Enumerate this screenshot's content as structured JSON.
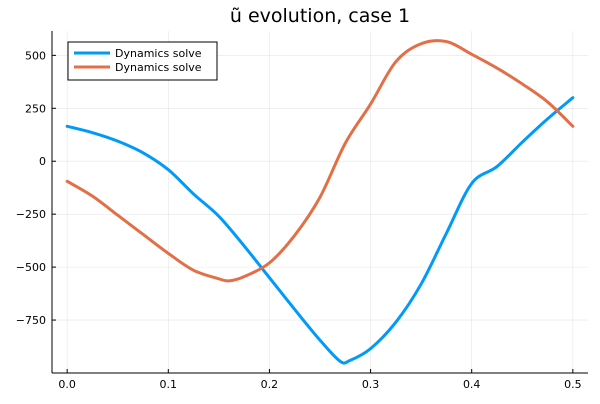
{
  "chart_data": {
    "type": "line",
    "title": "ũ evolution, case 1",
    "xlabel": "",
    "ylabel": "",
    "xlim": [
      -0.015,
      0.515
    ],
    "ylim": [
      -1000,
      615
    ],
    "x_ticks": [
      0.0,
      0.1,
      0.2,
      0.3,
      0.4,
      0.5
    ],
    "x_tick_labels": [
      "0.0",
      "0.1",
      "0.2",
      "0.3",
      "0.4",
      "0.5"
    ],
    "y_ticks": [
      500,
      250,
      0,
      -250,
      -500,
      -750
    ],
    "y_tick_labels": [
      "500",
      "250",
      "0",
      "−250",
      "−500",
      "−750"
    ],
    "grid": true,
    "legend_position": "top-left",
    "series": [
      {
        "name": "Dynamics solve",
        "color": "#009AF9",
        "x": [
          0.0,
          0.025,
          0.05,
          0.075,
          0.1,
          0.125,
          0.15,
          0.175,
          0.2,
          0.225,
          0.25,
          0.27,
          0.28,
          0.3,
          0.325,
          0.35,
          0.375,
          0.4,
          0.425,
          0.45,
          0.475,
          0.5
        ],
        "y": [
          165,
          135,
          95,
          40,
          -40,
          -155,
          -260,
          -400,
          -550,
          -700,
          -845,
          -945,
          -940,
          -885,
          -760,
          -580,
          -340,
          -105,
          -25,
          90,
          200,
          300
        ]
      },
      {
        "name": "Dynamics solve",
        "color": "#E26F46",
        "x": [
          0.0,
          0.025,
          0.05,
          0.075,
          0.1,
          0.125,
          0.15,
          0.16,
          0.175,
          0.2,
          0.225,
          0.25,
          0.275,
          0.3,
          0.325,
          0.35,
          0.375,
          0.4,
          0.425,
          0.45,
          0.475,
          0.5
        ],
        "y": [
          -95,
          -165,
          -255,
          -345,
          -435,
          -515,
          -555,
          -565,
          -545,
          -480,
          -350,
          -170,
          85,
          270,
          470,
          555,
          565,
          505,
          440,
          365,
          280,
          165
        ]
      }
    ]
  }
}
